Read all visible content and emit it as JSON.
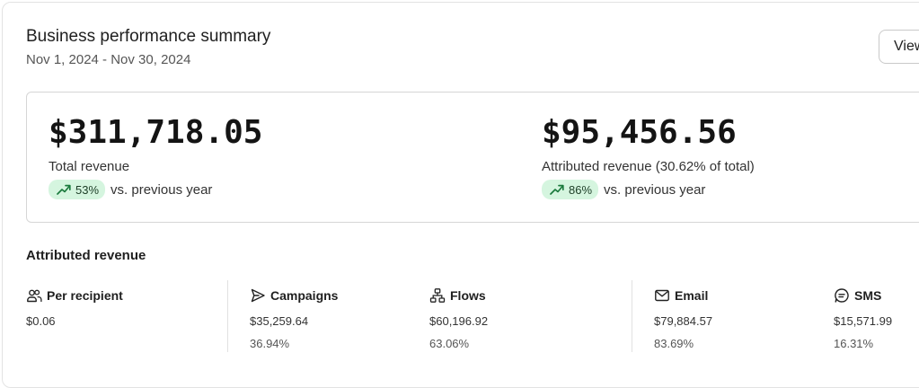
{
  "header": {
    "title": "Business performance summary",
    "date_range": "Nov 1, 2024 - Nov 30, 2024",
    "view_button_label": "View"
  },
  "kpis": {
    "total": {
      "value": "$311,718.05",
      "label": "Total revenue",
      "change": "53%",
      "comparison": "vs. previous year"
    },
    "attributed": {
      "value": "$95,456.56",
      "label": "Attributed revenue (30.62% of total)",
      "change": "86%",
      "comparison": "vs. previous year"
    }
  },
  "attributed_section": {
    "title": "Attributed revenue",
    "metrics": [
      {
        "label": "Per recipient",
        "value": "$0.06",
        "percent": "",
        "icon": "users-icon"
      },
      {
        "label": "Campaigns",
        "value": "$35,259.64",
        "percent": "36.94%",
        "icon": "send-icon"
      },
      {
        "label": "Flows",
        "value": "$60,196.92",
        "percent": "63.06%",
        "icon": "flow-icon"
      },
      {
        "label": "Email",
        "value": "$79,884.57",
        "percent": "83.69%",
        "icon": "mail-icon"
      },
      {
        "label": "SMS",
        "value": "$15,571.99",
        "percent": "16.31%",
        "icon": "sms-icon"
      }
    ]
  },
  "colors": {
    "badge_bg": "#d5f5df",
    "badge_text": "#1c3d26",
    "trend_icon": "#1b7a3d"
  }
}
